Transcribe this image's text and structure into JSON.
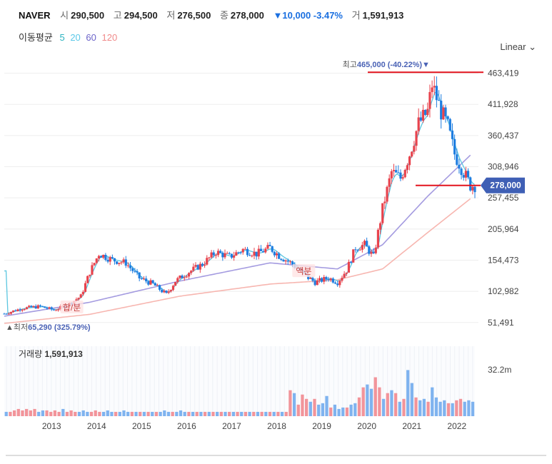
{
  "header": {
    "name": "NAVER",
    "open_label": "시",
    "open": "290,500",
    "high_label": "고",
    "high": "294,500",
    "low_label": "저",
    "low": "276,500",
    "close_label": "종",
    "close": "278,000",
    "change": "▼10,000 -3.47%",
    "volume_label": "거",
    "volume": "1,591,913"
  },
  "ma_legend": {
    "title": "이동평균",
    "periods": [
      "5",
      "20",
      "60",
      "120"
    ],
    "colors": [
      "#2bb3c0",
      "#5ac8e8",
      "#6b63c9",
      "#f08a8a"
    ]
  },
  "scale_toggle": "Linear ⌄",
  "colors": {
    "up": "#e8434d",
    "down": "#1f7ee0",
    "ma5": "#5bc6e0",
    "ma60": "#a49be0",
    "ma120": "#f7b6b0",
    "marker": "#e3141e",
    "price_tag": "#3f5fb5",
    "vol_up": "#f2949a",
    "vol_down": "#7fb3ef"
  },
  "chart_data": {
    "type": "candlestick",
    "title": "NAVER",
    "x_ticks": [
      "2013",
      "2014",
      "2015",
      "2016",
      "2017",
      "2018",
      "2019",
      "2020",
      "2021",
      "2022"
    ],
    "y_ticks": [
      "463,419",
      "411,928",
      "360,437",
      "308,946",
      "257,455",
      "205,964",
      "154,473",
      "102,982",
      "51,491"
    ],
    "y_tick_values": [
      463419,
      411928,
      360437,
      308946,
      257455,
      205964,
      154473,
      102982,
      51491
    ],
    "ylim": [
      30000,
      490000
    ],
    "x_range": [
      2012.1,
      2022.55
    ],
    "series_closes": [
      [
        2012.1,
        66000
      ],
      [
        2012.5,
        75000
      ],
      [
        2012.9,
        78000
      ],
      [
        2013.2,
        72000
      ],
      [
        2013.5,
        80000
      ],
      [
        2013.8,
        95000
      ],
      [
        2014.0,
        135000
      ],
      [
        2014.2,
        165000
      ],
      [
        2014.5,
        155000
      ],
      [
        2014.8,
        150000
      ],
      [
        2015.1,
        125000
      ],
      [
        2015.4,
        115000
      ],
      [
        2015.7,
        98000
      ],
      [
        2015.9,
        120000
      ],
      [
        2016.2,
        135000
      ],
      [
        2016.5,
        148000
      ],
      [
        2016.8,
        168000
      ],
      [
        2017.1,
        160000
      ],
      [
        2017.4,
        172000
      ],
      [
        2017.7,
        165000
      ],
      [
        2018.0,
        175000
      ],
      [
        2018.2,
        162000
      ],
      [
        2018.5,
        148000
      ],
      [
        2018.8,
        128000
      ],
      [
        2019.0,
        118000
      ],
      [
        2019.3,
        125000
      ],
      [
        2019.5,
        118000
      ],
      [
        2019.7,
        138000
      ],
      [
        2019.9,
        175000
      ],
      [
        2020.1,
        180000
      ],
      [
        2020.3,
        160000
      ],
      [
        2020.5,
        240000
      ],
      [
        2020.7,
        300000
      ],
      [
        2020.9,
        290000
      ],
      [
        2021.1,
        330000
      ],
      [
        2021.3,
        380000
      ],
      [
        2021.5,
        400000
      ],
      [
        2021.6,
        445000
      ],
      [
        2021.8,
        400000
      ],
      [
        2021.95,
        375000
      ],
      [
        2022.1,
        330000
      ],
      [
        2022.3,
        300000
      ],
      [
        2022.45,
        278000
      ]
    ],
    "ma60": [
      [
        2012.1,
        62000
      ],
      [
        2014.0,
        85000
      ],
      [
        2016.0,
        120000
      ],
      [
        2018.0,
        150000
      ],
      [
        2019.5,
        140000
      ],
      [
        2020.5,
        180000
      ],
      [
        2021.5,
        260000
      ],
      [
        2022.45,
        328000
      ]
    ],
    "ma120": [
      [
        2012.1,
        50000
      ],
      [
        2014.0,
        65000
      ],
      [
        2016.0,
        95000
      ],
      [
        2018.0,
        115000
      ],
      [
        2019.5,
        122000
      ],
      [
        2020.5,
        140000
      ],
      [
        2021.5,
        200000
      ],
      [
        2022.45,
        256000
      ]
    ],
    "annotations": {
      "max_label": "최고",
      "max_value": "465,000 (-40.22%)",
      "max_price": 465000,
      "max_x": 2021.55,
      "min_label": "최저",
      "min_value": "65,290 (325.79%)",
      "min_price": 65290,
      "min_x": 2012.15,
      "split_label": "합/분",
      "split_x": 2013.6,
      "faceval_label": "액분",
      "faceval_x": 2018.75,
      "current_price": "278,000",
      "current_value": 278000
    },
    "volume": {
      "label": "거래량",
      "value": "1,591,913",
      "axis_tick": "32.2m",
      "axis_tick_value": 32200000,
      "bars": [
        3,
        3,
        4,
        5,
        4,
        5,
        4,
        5,
        3,
        4,
        4,
        3,
        4,
        3,
        5,
        3,
        4,
        3,
        3,
        4,
        3,
        3,
        4,
        3,
        3,
        4,
        3,
        3,
        3,
        4,
        3,
        3,
        3,
        3,
        3,
        3,
        3,
        3,
        3,
        4,
        3,
        3,
        3,
        4,
        3,
        3,
        3,
        3,
        3,
        3,
        3,
        3,
        3,
        3,
        3,
        3,
        3,
        3,
        3,
        3,
        3,
        3,
        3,
        3,
        3,
        3,
        3,
        3,
        3,
        3,
        18,
        16,
        8,
        15,
        12,
        10,
        12,
        8,
        9,
        14,
        6,
        8,
        5,
        6,
        6,
        8,
        9,
        13,
        20,
        22,
        19,
        27,
        20,
        12,
        16,
        18,
        16,
        10,
        12,
        32,
        23,
        13,
        11,
        12,
        10,
        20,
        13,
        10,
        11,
        9,
        9,
        11,
        12,
        10,
        11,
        10
      ]
    }
  }
}
